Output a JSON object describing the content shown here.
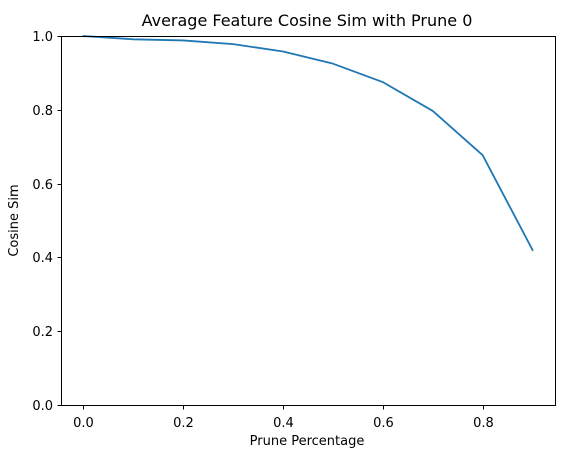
{
  "chart_data": {
    "type": "line",
    "title": "Average Feature Cosine Sim with Prune 0",
    "xlabel": "Prune Percentage",
    "ylabel": "Cosine Sim",
    "xlim": [
      -0.045,
      0.945
    ],
    "ylim": [
      0.0,
      1.0
    ],
    "xticks": [
      0.0,
      0.2,
      0.4,
      0.6,
      0.8
    ],
    "xtick_labels": [
      "0.0",
      "0.2",
      "0.4",
      "0.6",
      "0.8"
    ],
    "yticks": [
      0.0,
      0.2,
      0.4,
      0.6,
      0.8,
      1.0
    ],
    "ytick_labels": [
      "0.0",
      "0.2",
      "0.4",
      "0.6",
      "0.8",
      "1.0"
    ],
    "grid": false,
    "series": [
      {
        "color": "#1f77b4",
        "x": [
          0.0,
          0.1,
          0.2,
          0.3,
          0.4,
          0.5,
          0.6,
          0.7,
          0.8,
          0.9
        ],
        "y": [
          1.0,
          0.991,
          0.988,
          0.978,
          0.958,
          0.925,
          0.875,
          0.797,
          0.677,
          0.42
        ]
      }
    ]
  }
}
